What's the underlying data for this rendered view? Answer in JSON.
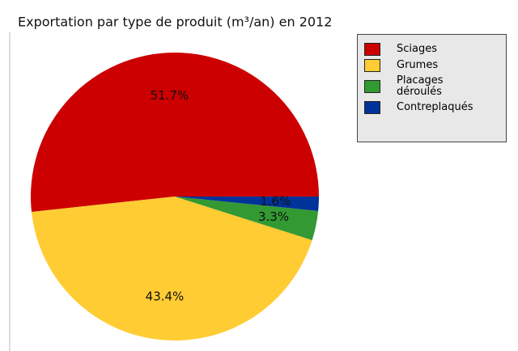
{
  "chart_data": {
    "type": "pie",
    "title": "Exportation par type de produit (m³/an) en 2012",
    "categories": [
      "Sciages",
      "Grumes",
      "Placages\ndéroulés",
      "Contreplaqués"
    ],
    "values": [
      51.7,
      43.4,
      3.3,
      1.6
    ],
    "value_labels": [
      "51.7%",
      "43.4%",
      "3.3%",
      "1.6%"
    ],
    "colors": [
      "#cc0000",
      "#ffcc33",
      "#339933",
      "#003399"
    ],
    "legend": "top-right"
  }
}
